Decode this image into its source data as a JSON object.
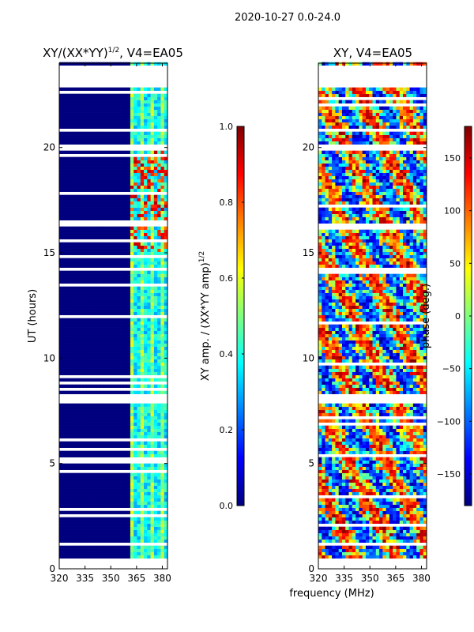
{
  "figure": {
    "suptitle": "2020-10-27 0.0-24.0",
    "xlabel_shared": "frequency (MHz)"
  },
  "colormap": {
    "name": "jet",
    "stops": [
      "#00007f",
      "#0000ff",
      "#007fff",
      "#00ffff",
      "#7fff7f",
      "#ffff00",
      "#ff7f00",
      "#ff0000",
      "#7f0000"
    ]
  },
  "chart_data": [
    {
      "type": "heatmap",
      "title": "XY/(XX*YY)^{1/2}, V4=EA05",
      "title_text": "XY/(XX*YY)",
      "title_sup": "1/2",
      "title_suffix": ", V4=EA05",
      "xlabel": "",
      "ylabel": "UT (hours)",
      "xlim": [
        320,
        383
      ],
      "ylim": [
        0,
        24
      ],
      "xticks": [
        320,
        335,
        350,
        365,
        380
      ],
      "yticks": [
        0,
        5,
        10,
        15,
        20
      ],
      "data_extent_hours": [
        0.5,
        24.0
      ],
      "active_channel_bands_mhz": [
        [
          362,
          383
        ]
      ],
      "gap_hours": [
        [
          22.9,
          23.9
        ],
        [
          19.9,
          20.1
        ],
        [
          14.1,
          14.3
        ],
        [
          7.9,
          8.1
        ],
        [
          1.1,
          1.3
        ],
        [
          0.0,
          0.5
        ]
      ],
      "colorbar": {
        "label": "XY amp. / (XX*YY amp)^{1/2}",
        "label_text": "XY amp. / (XX*YY amp)",
        "label_sup": "1/2",
        "range": [
          0.0,
          1.0
        ],
        "ticks": [
          0.0,
          0.2,
          0.4,
          0.6,
          0.8,
          1.0
        ],
        "tick_labels": [
          "0.0",
          "0.2",
          "0.4",
          "0.6",
          "0.8",
          "1.0"
        ]
      }
    },
    {
      "type": "heatmap",
      "title": "XY, V4=EA05",
      "xlabel": "frequency (MHz)",
      "ylabel": "",
      "xlim": [
        320,
        383
      ],
      "ylim": [
        0,
        24
      ],
      "xticks": [
        320,
        335,
        350,
        365,
        380
      ],
      "yticks": [
        0,
        5,
        10,
        15,
        20
      ],
      "data_extent_hours": [
        0.5,
        24.0
      ],
      "gap_hours": [
        [
          22.9,
          23.9
        ],
        [
          19.9,
          20.1
        ],
        [
          14.1,
          14.3
        ],
        [
          7.9,
          8.1
        ],
        [
          1.1,
          1.3
        ],
        [
          0.0,
          0.5
        ]
      ],
      "colorbar": {
        "label": "phase (deg.)",
        "range": [
          -180,
          180
        ],
        "ticks": [
          -150,
          -100,
          -50,
          0,
          50,
          100,
          150
        ],
        "tick_labels": [
          "−150",
          "−100",
          "−50",
          "0",
          "50",
          "100",
          "150"
        ]
      }
    }
  ]
}
